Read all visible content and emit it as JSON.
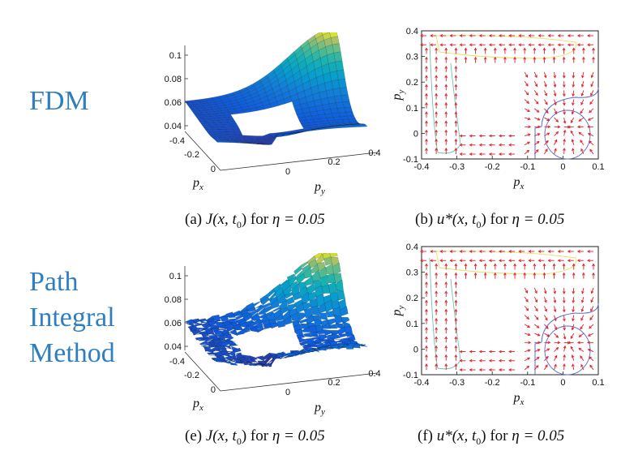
{
  "row_labels": {
    "row1": [
      "FDM"
    ],
    "row2": [
      "Path",
      "Integral",
      "Method"
    ]
  },
  "panels": [
    {
      "id": "a",
      "tag": "(a)",
      "func": "J(x, t",
      "sub": "0",
      "tail": ") for",
      "eta": "η = 0.05",
      "kind": "surface"
    },
    {
      "id": "b",
      "tag": "(b)",
      "func": "u*(x, t",
      "sub": "0",
      "tail": ") for",
      "eta": "η = 0.05",
      "kind": "quiver"
    },
    {
      "id": "e",
      "tag": "(e)",
      "func": "J(x, t",
      "sub": "0",
      "tail": ") for",
      "eta": "η = 0.05",
      "kind": "surface"
    },
    {
      "id": "f",
      "tag": "(f)",
      "func": "u*(x, t",
      "sub": "0",
      "tail": ") for",
      "eta": "η = 0.05",
      "kind": "quiver"
    }
  ],
  "surface_axes": {
    "z_ticks": [
      "0.1",
      "0.08",
      "0.06",
      "0.04"
    ],
    "x_ticks": [
      "-0.4",
      "-0.2",
      "0"
    ],
    "y_ticks": [
      "0",
      "0.2",
      "0.4"
    ],
    "xlabel": "p",
    "xlabel_sub": "x",
    "ylabel": "p",
    "ylabel_sub": "y"
  },
  "quiver_axes": {
    "x_ticks": [
      "-0.4",
      "-0.3",
      "-0.2",
      "-0.1",
      "0",
      "0.1"
    ],
    "y_ticks": [
      "0.4",
      "0.3",
      "0.2",
      "0.1",
      "0",
      "-0.1"
    ],
    "xlabel": "p",
    "xlabel_sub": "x",
    "ylabel": "p",
    "ylabel_sub": "y"
  },
  "chart_data": [
    {
      "type": "surface",
      "panel": "a",
      "x_range": [
        -0.4,
        0.1
      ],
      "y_range": [
        -0.1,
        0.4
      ],
      "zlim": [
        0.04,
        0.1
      ],
      "obstacle": "square hole in surface"
    },
    {
      "type": "quiver",
      "panel": "b",
      "xlim": [
        -0.4,
        0.1
      ],
      "ylim": [
        -0.1,
        0.4
      ]
    },
    {
      "type": "surface",
      "panel": "e",
      "x_range": [
        -0.4,
        0.1
      ],
      "y_range": [
        -0.1,
        0.4
      ],
      "zlim": [
        0.04,
        0.1
      ],
      "obstacle": "square hole in surface"
    },
    {
      "type": "quiver",
      "panel": "f",
      "xlim": [
        -0.4,
        0.1
      ],
      "ylim": [
        -0.1,
        0.4
      ]
    }
  ],
  "colors": {
    "label_blue": "#2f7fc0",
    "arrow_red": "#e0202a"
  }
}
